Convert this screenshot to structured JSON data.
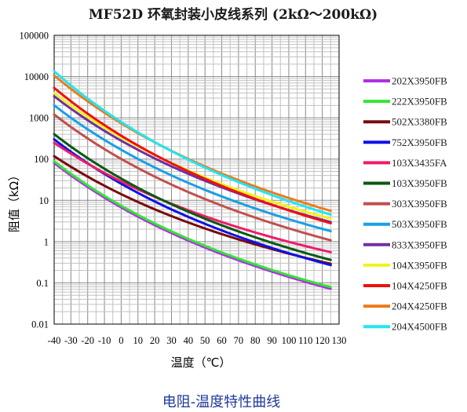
{
  "chart_data": {
    "type": "line",
    "title": "MF52D 环氧封装小皮线系列 (2kΩ～200kΩ)",
    "xlabel": "温度（℃）",
    "ylabel": "阻值（kΩ）",
    "caption": "电阻-温度特性曲线",
    "xlim": [
      -40,
      130
    ],
    "ylim": [
      0.01,
      100000
    ],
    "yscale": "log",
    "grid": true,
    "legend_position": "right",
    "x_ticks": [
      "-40",
      "-30",
      "-20",
      "-10",
      "0",
      "10",
      "20",
      "30",
      "40",
      "50",
      "60",
      "70",
      "80",
      "90",
      "100",
      "110",
      "120",
      "130"
    ],
    "y_ticks": [
      "100000",
      "10000",
      "1000",
      "100",
      "10",
      "1",
      "0.1",
      "0.01"
    ],
    "x": [
      -40,
      -35,
      -30,
      -25,
      -20,
      -15,
      -10,
      -5,
      0,
      5,
      10,
      15,
      20,
      25,
      30,
      35,
      40,
      45,
      50,
      55,
      60,
      65,
      70,
      75,
      80,
      85,
      90,
      95,
      100,
      105,
      110,
      115,
      120,
      125
    ],
    "series": [
      {
        "name": "202X3950FB",
        "color": "#b02ee6",
        "r25": 2,
        "beta": 3950
      },
      {
        "name": "222X3950FB",
        "color": "#33e633",
        "r25": 2.2,
        "beta": 3950
      },
      {
        "name": "502X3380FB",
        "color": "#7a0a0a",
        "r25": 5,
        "beta": 3380
      },
      {
        "name": "752X3950FB",
        "color": "#1010e6",
        "r25": 7.5,
        "beta": 3950
      },
      {
        "name": "103X3435FA",
        "color": "#f01a6a",
        "r25": 10,
        "beta": 3435
      },
      {
        "name": "103X3950FB",
        "color": "#0a5a12",
        "r25": 10,
        "beta": 3950
      },
      {
        "name": "303X3950FB",
        "color": "#c0504d",
        "r25": 30,
        "beta": 3950
      },
      {
        "name": "503X3950FB",
        "color": "#1aa0e6",
        "r25": 50,
        "beta": 3950
      },
      {
        "name": "833X3950FB",
        "color": "#7030a0",
        "r25": 83,
        "beta": 3950
      },
      {
        "name": "104X3950FB",
        "color": "#f2f21a",
        "r25": 100,
        "beta": 3950
      },
      {
        "name": "104X4250FB",
        "color": "#ee1010",
        "r25": 100,
        "beta": 4250
      },
      {
        "name": "204X4250FB",
        "color": "#ee7a1a",
        "r25": 200,
        "beta": 4250
      },
      {
        "name": "204X4500FB",
        "color": "#22e6f0",
        "r25": 200,
        "beta": 4500
      }
    ]
  }
}
